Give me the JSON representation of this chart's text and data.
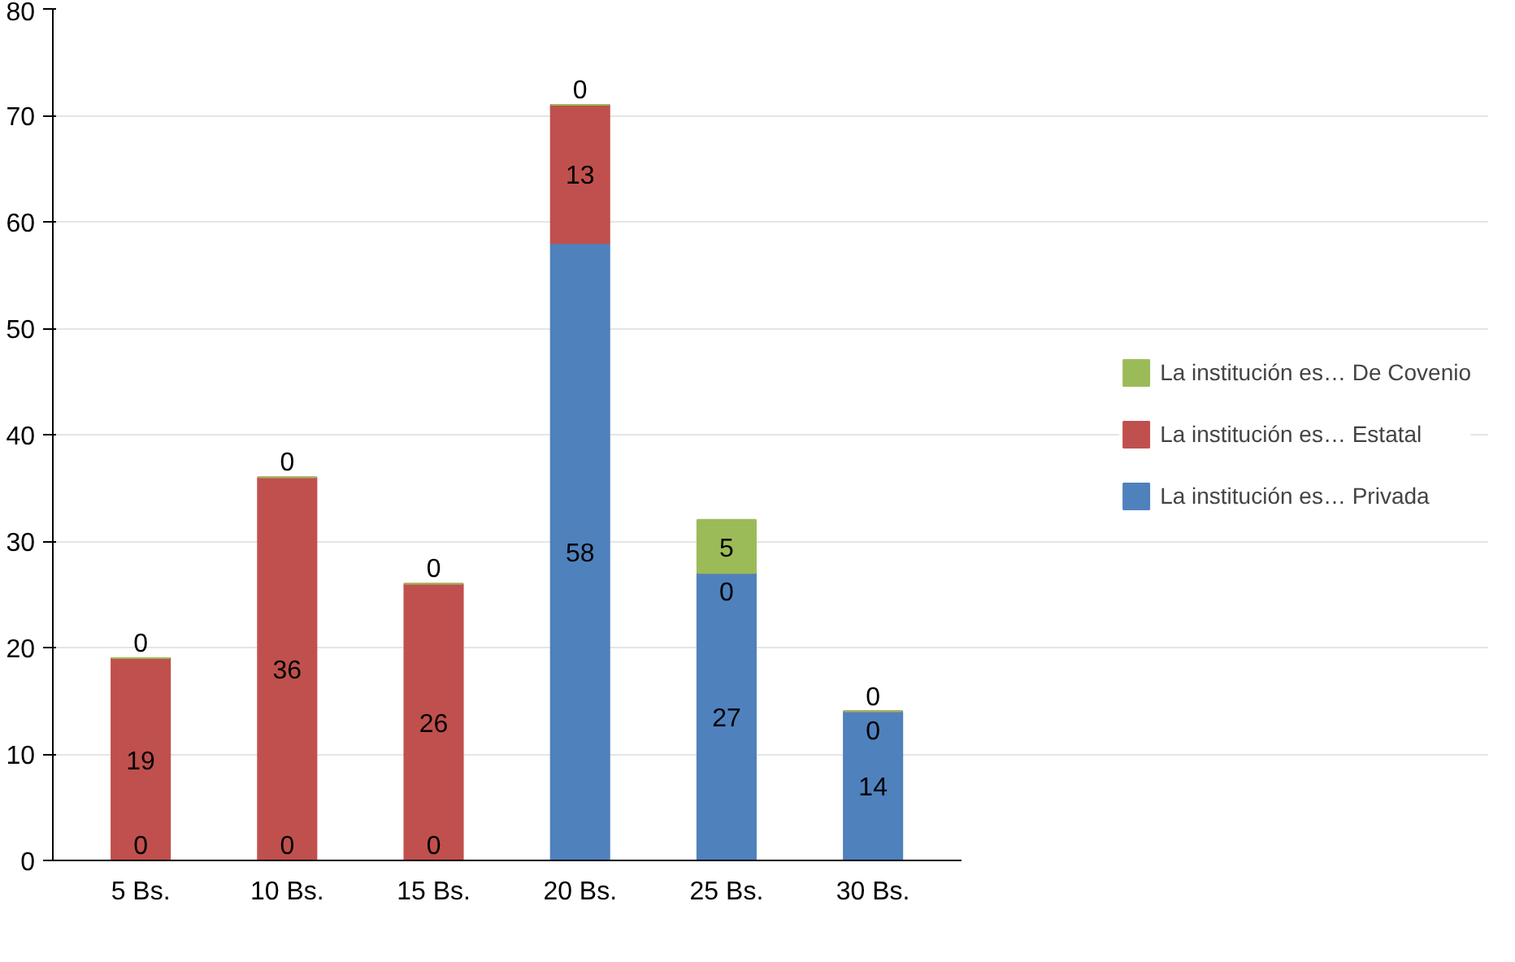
{
  "chart_data": {
    "type": "bar",
    "stacked": true,
    "categories": [
      "5 Bs.",
      "10 Bs.",
      "15 Bs.",
      "20 Bs.",
      "25 Bs.",
      "30 Bs."
    ],
    "series": [
      {
        "name": "La institución es… Privada",
        "color": "#4f81bd",
        "values": [
          0,
          0,
          0,
          58,
          27,
          14
        ]
      },
      {
        "name": "La institución es… Estatal",
        "color": "#c0504d",
        "values": [
          19,
          36,
          26,
          13,
          0,
          0
        ]
      },
      {
        "name": "La institución es… De Covenio",
        "color": "#9bbb59",
        "values": [
          0,
          0,
          0,
          0,
          5,
          0
        ]
      }
    ],
    "ylim": [
      0,
      80
    ],
    "yticks": [
      0,
      10,
      20,
      30,
      40,
      50,
      60,
      70,
      80
    ],
    "grid": "y",
    "legend": "right",
    "data_labels": true
  }
}
